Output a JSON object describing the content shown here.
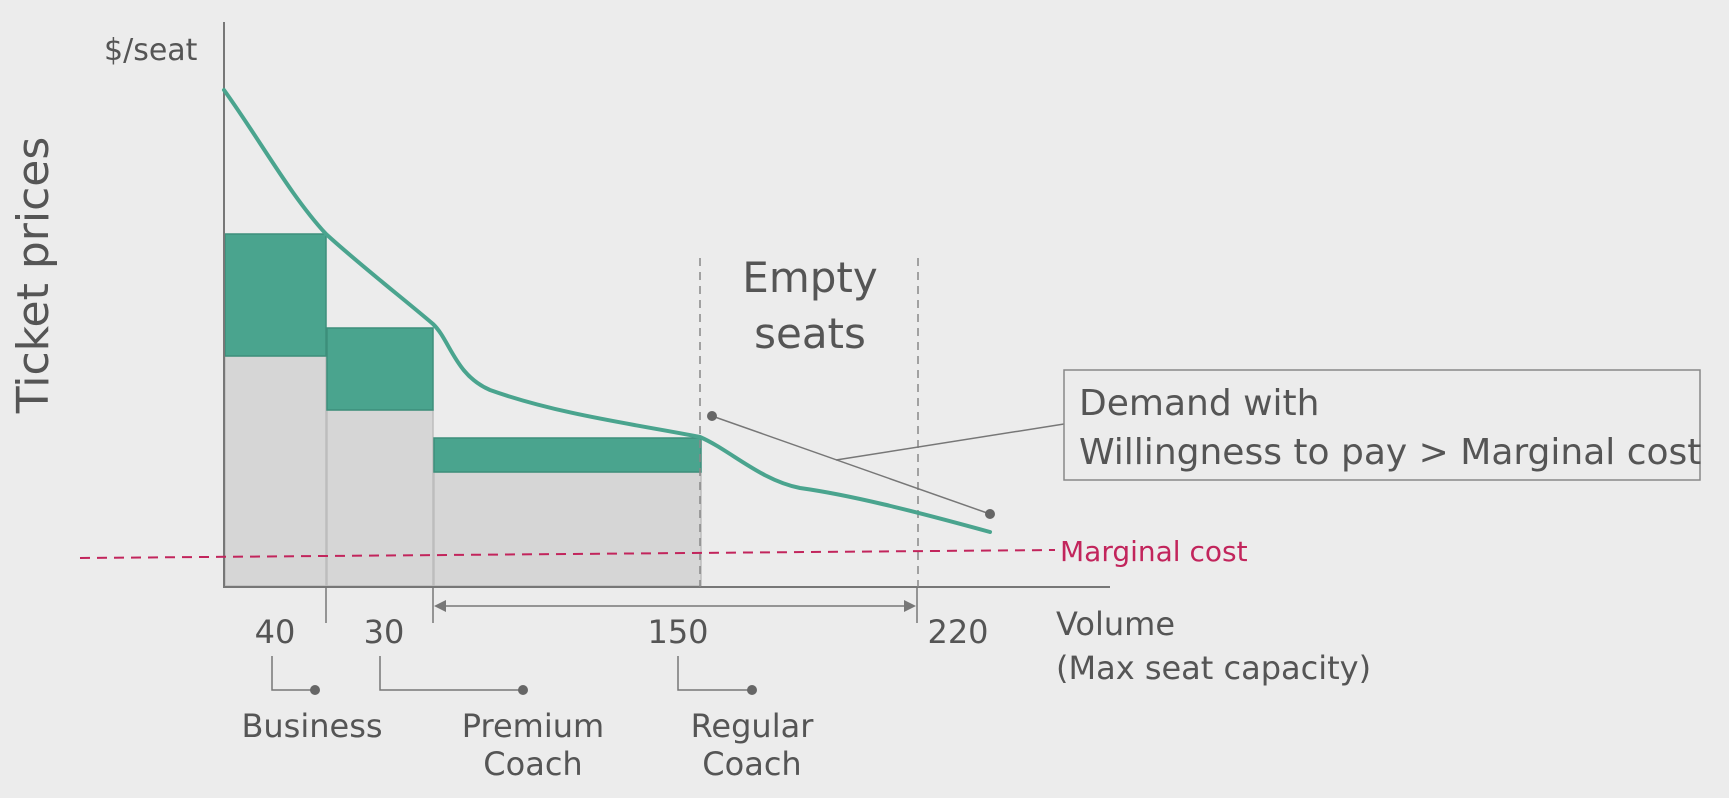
{
  "labels": {
    "y_axis_title": "Ticket prices",
    "y_unit": "$/seat",
    "x_axis_line1": "Volume",
    "x_axis_line2": "(Max seat capacity)",
    "marginal_cost": "Marginal cost",
    "empty_seats_line1": "Empty",
    "empty_seats_line2": "seats",
    "callout_line1": "Demand with",
    "callout_line2": "Willingness to pay > Marginal cost"
  },
  "ticks": [
    "40",
    "30",
    "150",
    "220"
  ],
  "segments": [
    {
      "line1": "Business",
      "line2": ""
    },
    {
      "line1": "Premium",
      "line2": "Coach"
    },
    {
      "line1": "Regular",
      "line2": "Coach"
    }
  ],
  "colors": {
    "background": "#ececec",
    "demand_curve": "#4aa48e",
    "revenue_bar": "#4aa48e",
    "cost_bar": "#d6d6d6",
    "marginal_cost": "#c2255c",
    "text": "#555555",
    "axis": "#777777"
  }
}
